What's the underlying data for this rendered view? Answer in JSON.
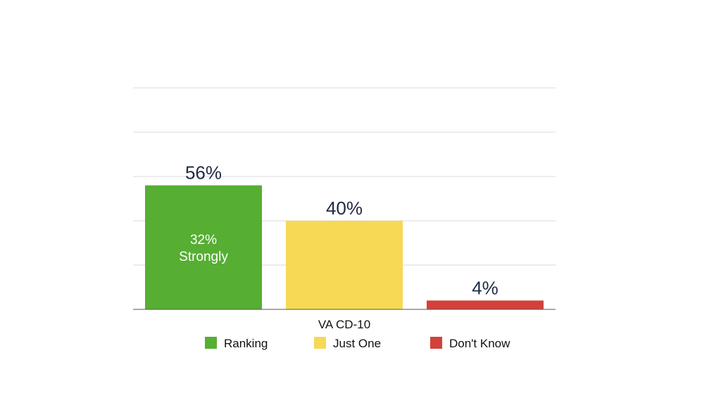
{
  "chart_data": {
    "type": "bar",
    "categories": [
      "VA CD-10"
    ],
    "series": [
      {
        "name": "Ranking",
        "values": [
          56
        ],
        "label": "56%",
        "inner_label": [
          "32%",
          "Strongly"
        ],
        "color": "#56ae33"
      },
      {
        "name": "Just One",
        "values": [
          40
        ],
        "label": "40%",
        "color": "#f7d955"
      },
      {
        "name": "Don't Know",
        "values": [
          4
        ],
        "label": "4%",
        "color": "#d3413a"
      }
    ],
    "ylim": [
      0,
      100
    ],
    "grid": true,
    "gridline_values": [
      20,
      40,
      60,
      80
    ],
    "legend_position": "bottom",
    "title": "",
    "xlabel": "",
    "ylabel": ""
  }
}
